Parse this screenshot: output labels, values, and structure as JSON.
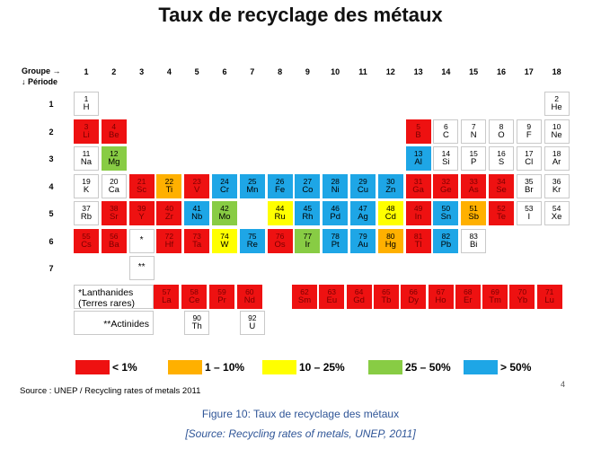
{
  "title": "Taux de recyclage des métaux",
  "header": {
    "group_label": "Groupe →",
    "period_label": "↓ Période"
  },
  "groups": [
    "1",
    "2",
    "3",
    "4",
    "5",
    "6",
    "7",
    "8",
    "9",
    "10",
    "11",
    "12",
    "13",
    "14",
    "15",
    "16",
    "17",
    "18"
  ],
  "periods": [
    "1",
    "2",
    "3",
    "4",
    "5",
    "6",
    "7"
  ],
  "colors": {
    "lt1": "#ee1111",
    "r1_10": "#ffb000",
    "r10_25": "#ffff00",
    "r25_50": "#88cc44",
    "gt50": "#1ea6e6",
    "none": "#ffffff"
  },
  "legend": [
    {
      "cat": "lt1",
      "label": "< 1%"
    },
    {
      "cat": "r1_10",
      "label": "1 – 10%"
    },
    {
      "cat": "r10_25",
      "label": "10 – 25%"
    },
    {
      "cat": "r25_50",
      "label": "25 – 50%"
    },
    {
      "cat": "gt50",
      "label": "> 50%"
    }
  ],
  "elements": [
    {
      "n": "1",
      "s": "H",
      "g": 1,
      "p": 1,
      "c": "none"
    },
    {
      "n": "2",
      "s": "He",
      "g": 18,
      "p": 1,
      "c": "none"
    },
    {
      "n": "3",
      "s": "Li",
      "g": 1,
      "p": 2,
      "c": "lt1"
    },
    {
      "n": "4",
      "s": "Be",
      "g": 2,
      "p": 2,
      "c": "lt1"
    },
    {
      "n": "5",
      "s": "B",
      "g": 13,
      "p": 2,
      "c": "lt1"
    },
    {
      "n": "6",
      "s": "C",
      "g": 14,
      "p": 2,
      "c": "none"
    },
    {
      "n": "7",
      "s": "N",
      "g": 15,
      "p": 2,
      "c": "none"
    },
    {
      "n": "8",
      "s": "O",
      "g": 16,
      "p": 2,
      "c": "none"
    },
    {
      "n": "9",
      "s": "F",
      "g": 17,
      "p": 2,
      "c": "none"
    },
    {
      "n": "10",
      "s": "Ne",
      "g": 18,
      "p": 2,
      "c": "none"
    },
    {
      "n": "11",
      "s": "Na",
      "g": 1,
      "p": 3,
      "c": "none"
    },
    {
      "n": "12",
      "s": "Mg",
      "g": 2,
      "p": 3,
      "c": "r25_50"
    },
    {
      "n": "13",
      "s": "Al",
      "g": 13,
      "p": 3,
      "c": "gt50"
    },
    {
      "n": "14",
      "s": "Si",
      "g": 14,
      "p": 3,
      "c": "none"
    },
    {
      "n": "15",
      "s": "P",
      "g": 15,
      "p": 3,
      "c": "none"
    },
    {
      "n": "16",
      "s": "S",
      "g": 16,
      "p": 3,
      "c": "none"
    },
    {
      "n": "17",
      "s": "Cl",
      "g": 17,
      "p": 3,
      "c": "none"
    },
    {
      "n": "18",
      "s": "Ar",
      "g": 18,
      "p": 3,
      "c": "none"
    },
    {
      "n": "19",
      "s": "K",
      "g": 1,
      "p": 4,
      "c": "none"
    },
    {
      "n": "20",
      "s": "Ca",
      "g": 2,
      "p": 4,
      "c": "none"
    },
    {
      "n": "21",
      "s": "Sc",
      "g": 3,
      "p": 4,
      "c": "lt1"
    },
    {
      "n": "22",
      "s": "Ti",
      "g": 4,
      "p": 4,
      "c": "r1_10"
    },
    {
      "n": "23",
      "s": "V",
      "g": 5,
      "p": 4,
      "c": "lt1"
    },
    {
      "n": "24",
      "s": "Cr",
      "g": 6,
      "p": 4,
      "c": "gt50"
    },
    {
      "n": "25",
      "s": "Mn",
      "g": 7,
      "p": 4,
      "c": "gt50"
    },
    {
      "n": "26",
      "s": "Fe",
      "g": 8,
      "p": 4,
      "c": "gt50"
    },
    {
      "n": "27",
      "s": "Co",
      "g": 9,
      "p": 4,
      "c": "gt50"
    },
    {
      "n": "28",
      "s": "Ni",
      "g": 10,
      "p": 4,
      "c": "gt50"
    },
    {
      "n": "29",
      "s": "Cu",
      "g": 11,
      "p": 4,
      "c": "gt50"
    },
    {
      "n": "30",
      "s": "Zn",
      "g": 12,
      "p": 4,
      "c": "gt50"
    },
    {
      "n": "31",
      "s": "Ga",
      "g": 13,
      "p": 4,
      "c": "lt1"
    },
    {
      "n": "32",
      "s": "Ge",
      "g": 14,
      "p": 4,
      "c": "lt1"
    },
    {
      "n": "33",
      "s": "As",
      "g": 15,
      "p": 4,
      "c": "lt1"
    },
    {
      "n": "34",
      "s": "Se",
      "g": 16,
      "p": 4,
      "c": "lt1"
    },
    {
      "n": "35",
      "s": "Br",
      "g": 17,
      "p": 4,
      "c": "none"
    },
    {
      "n": "36",
      "s": "Kr",
      "g": 18,
      "p": 4,
      "c": "none"
    },
    {
      "n": "37",
      "s": "Rb",
      "g": 1,
      "p": 5,
      "c": "none"
    },
    {
      "n": "38",
      "s": "Sr",
      "g": 2,
      "p": 5,
      "c": "lt1"
    },
    {
      "n": "39",
      "s": "Y",
      "g": 3,
      "p": 5,
      "c": "lt1"
    },
    {
      "n": "40",
      "s": "Zr",
      "g": 4,
      "p": 5,
      "c": "lt1"
    },
    {
      "n": "41",
      "s": "Nb",
      "g": 5,
      "p": 5,
      "c": "gt50"
    },
    {
      "n": "42",
      "s": "Mo",
      "g": 6,
      "p": 5,
      "c": "r25_50"
    },
    {
      "n": "44",
      "s": "Ru",
      "g": 8,
      "p": 5,
      "c": "r10_25"
    },
    {
      "n": "45",
      "s": "Rh",
      "g": 9,
      "p": 5,
      "c": "gt50"
    },
    {
      "n": "46",
      "s": "Pd",
      "g": 10,
      "p": 5,
      "c": "gt50"
    },
    {
      "n": "47",
      "s": "Ag",
      "g": 11,
      "p": 5,
      "c": "gt50"
    },
    {
      "n": "48",
      "s": "Cd",
      "g": 12,
      "p": 5,
      "c": "r10_25"
    },
    {
      "n": "49",
      "s": "In",
      "g": 13,
      "p": 5,
      "c": "lt1"
    },
    {
      "n": "50",
      "s": "Sn",
      "g": 14,
      "p": 5,
      "c": "gt50"
    },
    {
      "n": "51",
      "s": "Sb",
      "g": 15,
      "p": 5,
      "c": "r1_10"
    },
    {
      "n": "52",
      "s": "Te",
      "g": 16,
      "p": 5,
      "c": "lt1"
    },
    {
      "n": "53",
      "s": "I",
      "g": 17,
      "p": 5,
      "c": "none"
    },
    {
      "n": "54",
      "s": "Xe",
      "g": 18,
      "p": 5,
      "c": "none"
    },
    {
      "n": "55",
      "s": "Cs",
      "g": 1,
      "p": 6,
      "c": "lt1"
    },
    {
      "n": "56",
      "s": "Ba",
      "g": 2,
      "p": 6,
      "c": "lt1"
    },
    {
      "n": "*",
      "s": "",
      "g": 3,
      "p": 6,
      "c": "none"
    },
    {
      "n": "72",
      "s": "Hf",
      "g": 4,
      "p": 6,
      "c": "lt1"
    },
    {
      "n": "73",
      "s": "Ta",
      "g": 5,
      "p": 6,
      "c": "lt1"
    },
    {
      "n": "74",
      "s": "W",
      "g": 6,
      "p": 6,
      "c": "r10_25"
    },
    {
      "n": "75",
      "s": "Re",
      "g": 7,
      "p": 6,
      "c": "gt50"
    },
    {
      "n": "76",
      "s": "Os",
      "g": 8,
      "p": 6,
      "c": "lt1"
    },
    {
      "n": "77",
      "s": "Ir",
      "g": 9,
      "p": 6,
      "c": "r25_50"
    },
    {
      "n": "78",
      "s": "Pt",
      "g": 10,
      "p": 6,
      "c": "gt50"
    },
    {
      "n": "79",
      "s": "Au",
      "g": 11,
      "p": 6,
      "c": "gt50"
    },
    {
      "n": "80",
      "s": "Hg",
      "g": 12,
      "p": 6,
      "c": "r1_10"
    },
    {
      "n": "81",
      "s": "Tl",
      "g": 13,
      "p": 6,
      "c": "lt1"
    },
    {
      "n": "82",
      "s": "Pb",
      "g": 14,
      "p": 6,
      "c": "gt50"
    },
    {
      "n": "83",
      "s": "Bi",
      "g": 15,
      "p": 6,
      "c": "none"
    },
    {
      "n": "**",
      "s": "",
      "g": 3,
      "p": 7,
      "c": "none"
    }
  ],
  "lanthanides": {
    "label1": "*Lanthanides",
    "label2": "(Terres rares)",
    "items": [
      {
        "n": "57",
        "s": "La",
        "c": "lt1"
      },
      {
        "n": "58",
        "s": "Ce",
        "c": "lt1"
      },
      {
        "n": "59",
        "s": "Pr",
        "c": "lt1"
      },
      {
        "n": "60",
        "s": "Nd",
        "c": "lt1"
      },
      {
        "n": "62",
        "s": "Sm",
        "c": "lt1"
      },
      {
        "n": "63",
        "s": "Eu",
        "c": "lt1"
      },
      {
        "n": "64",
        "s": "Gd",
        "c": "lt1"
      },
      {
        "n": "65",
        "s": "Tb",
        "c": "lt1"
      },
      {
        "n": "66",
        "s": "Dy",
        "c": "lt1"
      },
      {
        "n": "67",
        "s": "Ho",
        "c": "lt1"
      },
      {
        "n": "68",
        "s": "Er",
        "c": "lt1"
      },
      {
        "n": "69",
        "s": "Tm",
        "c": "lt1"
      },
      {
        "n": "70",
        "s": "Yb",
        "c": "lt1"
      },
      {
        "n": "71",
        "s": "Lu",
        "c": "lt1"
      }
    ]
  },
  "actinides": {
    "label": "**Actinides",
    "items": [
      {
        "n": "90",
        "s": "Th",
        "c": "none"
      },
      {
        "n": "92",
        "s": "U",
        "c": "none"
      }
    ]
  },
  "source": "Source : UNEP / Recycling rates of metals 2011",
  "page_number": "4",
  "caption": "Figure 10: Taux de recyclage des métaux",
  "caption_source": "[Source: Recycling rates of metals, UNEP, 2011]"
}
